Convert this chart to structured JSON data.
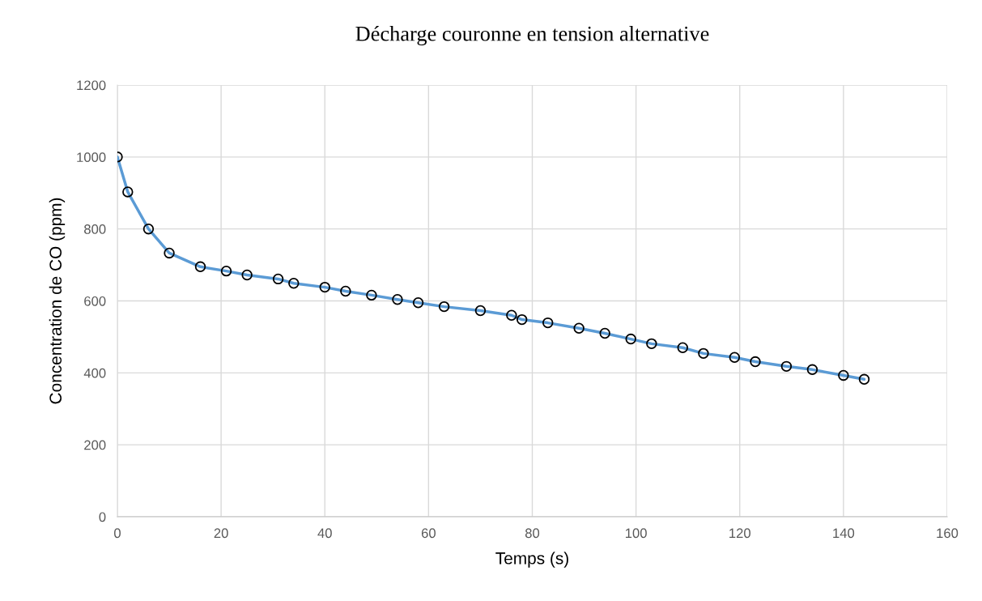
{
  "chart_data": {
    "type": "line",
    "title": "Décharge couronne en tension alternative",
    "xlabel": "Temps (s)",
    "ylabel": "Concentration de CO (ppm)",
    "xlim": [
      0,
      160
    ],
    "xticks": [
      0,
      20,
      40,
      60,
      80,
      100,
      120,
      140,
      160
    ],
    "ylim": [
      0,
      1200
    ],
    "yticks": [
      0,
      200,
      400,
      600,
      800,
      1000,
      1200
    ],
    "grid": true,
    "line_style": "solid",
    "x": [
      0,
      2,
      6,
      10,
      16,
      21,
      25,
      31,
      34,
      40,
      44,
      49,
      54,
      58,
      63,
      70,
      76,
      78,
      83,
      89,
      94,
      99,
      103,
      109,
      113,
      119,
      123,
      129,
      134,
      140,
      144
    ],
    "series": [
      {
        "marker": "none",
        "color": "#5b9bd5",
        "values": [
          1000,
          903,
          800,
          733,
          695,
          683,
          672,
          661,
          649,
          638,
          627,
          616,
          604,
          595,
          584,
          573,
          560,
          548,
          539,
          524,
          510,
          494,
          481,
          470,
          454,
          443,
          431,
          418,
          409,
          393,
          382
        ]
      },
      {
        "type": "scatter",
        "marker": "circle",
        "color": "#000000",
        "values": [
          1000,
          903,
          800,
          733,
          695,
          683,
          672,
          661,
          649,
          638,
          627,
          616,
          604,
          595,
          584,
          573,
          560,
          548,
          539,
          524,
          510,
          494,
          481,
          470,
          454,
          443,
          431,
          418,
          409,
          393,
          382
        ]
      }
    ]
  }
}
